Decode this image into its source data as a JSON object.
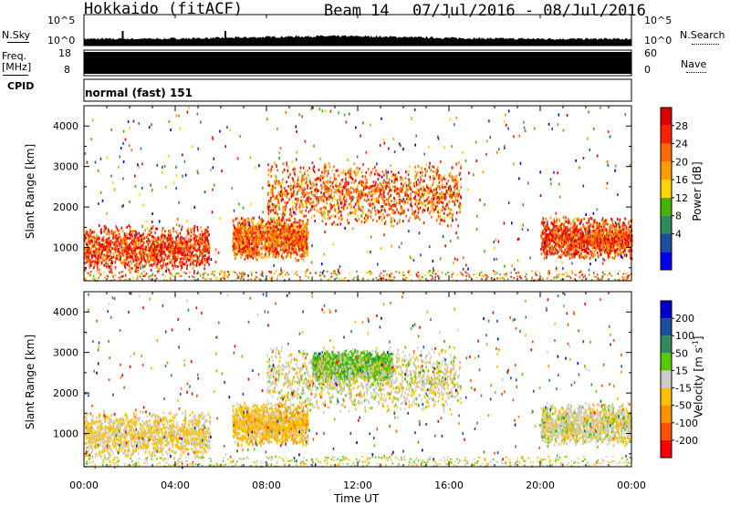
{
  "header": {
    "station": "Hokkaido (fitACF)",
    "beam": "Beam 14",
    "date_range": "07/Jul/2016 - 08/Jul/2016"
  },
  "panels": {
    "nsky_label": "N.Sky",
    "nsky_ticks": [
      "10^5",
      "10^0"
    ],
    "nsearch_label": "N.Search",
    "nsearch_ticks": [
      "10^5",
      "10^0"
    ],
    "freq_label_line1": "Freq.",
    "freq_label_line2": "[MHz]",
    "freq_ticks": [
      "18",
      "8"
    ],
    "nave_label": "Nave",
    "nave_ticks": [
      "60",
      "0"
    ],
    "cpid_label": "CPID",
    "cpid_value": "normal (fast) 151"
  },
  "colors": {
    "power_bar": [
      "#0000ee",
      "#1a4fa0",
      "#2e8a5a",
      "#46b400",
      "#ffd400",
      "#ff9c00",
      "#ff6a00",
      "#ff2000",
      "#dd0000"
    ],
    "velocity_bar": [
      "#ff0000",
      "#ff5000",
      "#ff9000",
      "#ffc000",
      "#cccccc",
      "#55cc00",
      "#2e8a5a",
      "#1a4fa0",
      "#0000cc"
    ]
  },
  "chart_data": [
    {
      "type": "heatmap",
      "quantity": "Power",
      "ylabel": "Slant Range [km]",
      "xlim": [
        "00:00",
        "00:00"
      ],
      "ylim": [
        180,
        4500
      ],
      "yticks": [
        1000,
        2000,
        3000,
        4000
      ],
      "colorbar": {
        "label": "Power [dB]",
        "ticks": [
          "28",
          "24",
          "20",
          "16",
          "12",
          "8",
          "4"
        ],
        "range": [
          0,
          30
        ]
      },
      "echo_regions": [
        {
          "t_start_h": 0,
          "t_end_h": 5.5,
          "range_km": [
            400,
            1600
          ],
          "value_db": 24
        },
        {
          "t_start_h": 6.5,
          "t_end_h": 9.8,
          "range_km": [
            700,
            1800
          ],
          "value_db": 22
        },
        {
          "t_start_h": 8,
          "t_end_h": 16.5,
          "range_km": [
            1500,
            3200
          ],
          "value_db": 22
        },
        {
          "t_start_h": 20,
          "t_end_h": 24,
          "range_km": [
            700,
            1800
          ],
          "value_db": 24
        }
      ]
    },
    {
      "type": "heatmap",
      "quantity": "Velocity",
      "ylabel": "Slant Range [km]",
      "xlabel": "Time UT",
      "xlim": [
        "00:00",
        "00:00"
      ],
      "ylim": [
        180,
        4500
      ],
      "yticks": [
        1000,
        2000,
        3000,
        4000
      ],
      "colorbar": {
        "label": "Velocity [m s^-1]",
        "ticks": [
          "200",
          "100",
          "50",
          "15",
          "-15",
          "-50",
          "-100",
          "-200"
        ],
        "range": [
          -250,
          250
        ]
      },
      "echo_regions": [
        {
          "t_start_h": 0,
          "t_end_h": 5.5,
          "range_km": [
            400,
            1600
          ],
          "value_ms": -10
        },
        {
          "t_start_h": 6.5,
          "t_end_h": 9.8,
          "range_km": [
            700,
            1800
          ],
          "value_ms": -20
        },
        {
          "t_start_h": 10,
          "t_end_h": 13.5,
          "range_km": [
            2300,
            3100
          ],
          "value_ms": 40
        },
        {
          "t_start_h": 8,
          "t_end_h": 16.5,
          "range_km": [
            1500,
            3200
          ],
          "value_ms": 0
        },
        {
          "t_start_h": 20,
          "t_end_h": 24,
          "range_km": [
            700,
            1800
          ],
          "value_ms": 0
        }
      ]
    }
  ],
  "x_axis": {
    "ticks": [
      "00:00",
      "04:00",
      "08:00",
      "12:00",
      "16:00",
      "20:00",
      "00:00"
    ],
    "label": "Time UT"
  }
}
